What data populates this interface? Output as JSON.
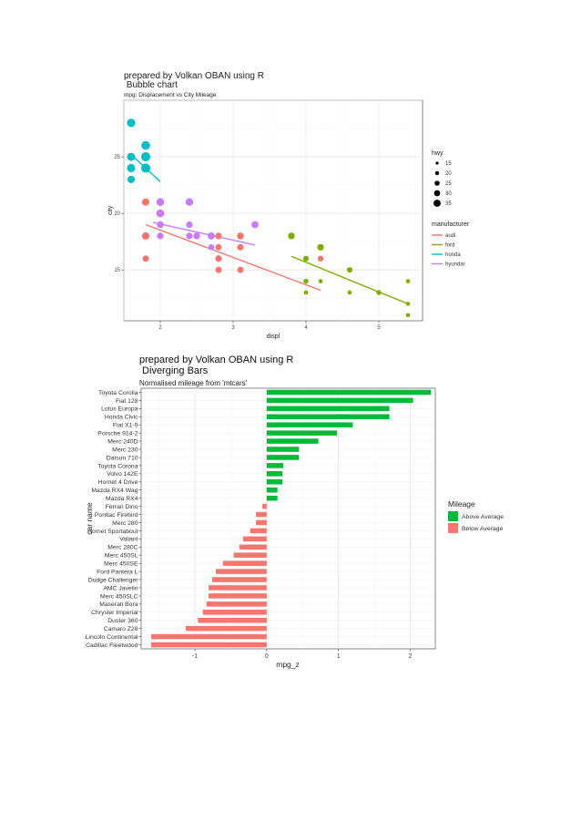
{
  "chart_data": [
    {
      "type": "scatter",
      "title": "prepared by Volkan OBAN using R\n Bubble chart",
      "subtitle": "mpg: Displacement vs City Mileage",
      "xlabel": "displ",
      "ylabel": "city",
      "xlim": [
        1.5,
        5.6
      ],
      "ylim": [
        10.5,
        30
      ],
      "x_ticks": [
        2,
        3,
        4,
        5
      ],
      "y_ticks": [
        15,
        20,
        25
      ],
      "grid": true,
      "size_legend": {
        "title": "hwy",
        "values": [
          15,
          20,
          25,
          30,
          35
        ]
      },
      "color_legend": {
        "title": "manufacturer",
        "entries": [
          {
            "name": "audi",
            "color": "#F8766D"
          },
          {
            "name": "ford",
            "color": "#7CAE00"
          },
          {
            "name": "honda",
            "color": "#00BFC4"
          },
          {
            "name": "hyundai",
            "color": "#C77CFF"
          }
        ]
      },
      "series": [
        {
          "name": "audi",
          "color": "#F8766D",
          "points": [
            [
              1.8,
              18,
              29
            ],
            [
              1.8,
              21,
              29
            ],
            [
              2.0,
              20,
              31
            ],
            [
              2.0,
              21,
              30
            ],
            [
              2.8,
              16,
              26
            ],
            [
              2.8,
              18,
              26
            ],
            [
              3.1,
              18,
              27
            ],
            [
              1.8,
              18,
              26
            ],
            [
              1.8,
              16,
              25
            ],
            [
              2.0,
              20,
              28
            ],
            [
              2.0,
              19,
              27
            ],
            [
              2.8,
              15,
              25
            ],
            [
              2.8,
              17,
              25
            ],
            [
              3.1,
              17,
              25
            ],
            [
              3.1,
              15,
              25
            ],
            [
              2.8,
              15,
              24
            ],
            [
              3.1,
              17,
              25
            ],
            [
              4.2,
              16,
              23
            ]
          ],
          "trend": [
            [
              1.8,
              19.0
            ],
            [
              4.2,
              13.2
            ]
          ]
        },
        {
          "name": "ford",
          "color": "#7CAE00",
          "points": [
            [
              3.8,
              18,
              26
            ],
            [
              3.8,
              18,
              25
            ],
            [
              4.0,
              16,
              22
            ],
            [
              4.0,
              14,
              20
            ],
            [
              4.6,
              15,
              22
            ],
            [
              5.4,
              12,
              17
            ],
            [
              5.4,
              11,
              15
            ],
            [
              4.0,
              14,
              17
            ],
            [
              4.0,
              13,
              17
            ],
            [
              4.0,
              14,
              18
            ],
            [
              4.2,
              14,
              17
            ],
            [
              4.6,
              13,
              16
            ],
            [
              4.6,
              13,
              16
            ],
            [
              4.6,
              13,
              17
            ],
            [
              5.4,
              11,
              17
            ],
            [
              3.8,
              18,
              26
            ],
            [
              4.2,
              17,
              26
            ],
            [
              4.6,
              15,
              21
            ],
            [
              4.6,
              15,
              21
            ],
            [
              5.0,
              13,
              20
            ],
            [
              5.4,
              14,
              17
            ]
          ],
          "trend": [
            [
              3.8,
              16.2
            ],
            [
              5.4,
              12.0
            ]
          ]
        },
        {
          "name": "honda",
          "color": "#00BFC4",
          "points": [
            [
              1.6,
              28,
              33
            ],
            [
              1.6,
              24,
              32
            ],
            [
              1.6,
              25,
              32
            ],
            [
              1.6,
              23,
              29
            ],
            [
              1.6,
              24,
              32
            ],
            [
              1.8,
              26,
              34
            ],
            [
              1.8,
              25,
              36
            ],
            [
              1.8,
              24,
              36
            ],
            [
              2.0,
              21,
              29
            ]
          ],
          "trend": [
            [
              1.6,
              25.2
            ],
            [
              2.0,
              22.8
            ]
          ]
        },
        {
          "name": "hyundai",
          "color": "#C77CFF",
          "points": [
            [
              2.0,
              18,
              26
            ],
            [
              2.0,
              19,
              26
            ],
            [
              2.0,
              20,
              29
            ],
            [
              2.0,
              21,
              28
            ],
            [
              2.4,
              19,
              26
            ],
            [
              2.4,
              18,
              26
            ],
            [
              2.5,
              18,
              26
            ],
            [
              2.5,
              18,
              26
            ],
            [
              2.7,
              17,
              24
            ],
            [
              2.4,
              21,
              28
            ],
            [
              2.4,
              21,
              30
            ],
            [
              2.5,
              18,
              26
            ],
            [
              2.7,
              18,
              28
            ],
            [
              3.3,
              19,
              28
            ]
          ],
          "trend": [
            [
              1.9,
              19.2
            ],
            [
              3.3,
              17.2
            ]
          ]
        }
      ]
    },
    {
      "type": "bar",
      "orientation": "horizontal",
      "title": "prepared by Volkan OBAN using R\n Diverging Bars",
      "subtitle": "Normalised mileage from 'mtcars'",
      "xlabel": "mpg_z",
      "ylabel": "car name",
      "xlim": [
        -1.75,
        2.35
      ],
      "x_ticks": [
        -1,
        0,
        1,
        2
      ],
      "grid": true,
      "legend": {
        "title": "Mileage",
        "entries": [
          {
            "name": "Above Average",
            "color": "#00BA38"
          },
          {
            "name": "Below Average",
            "color": "#F8766D"
          }
        ]
      },
      "categories": [
        "Toyota Corolla",
        "Fiat 128",
        "Lotus Europa",
        "Honda Civic",
        "Fiat X1-9",
        "Porsche 914-2",
        "Merc 240D",
        "Merc 230",
        "Datsun 710",
        "Toyota Corona",
        "Volvo 142E",
        "Hornet 4 Drive",
        "Mazda RX4 Wag",
        "Mazda RX4",
        "Ferrari Dino",
        "Pontiac Firebird",
        "Merc 280",
        "Hornet Sportabout",
        "Valiant",
        "Merc 280C",
        "Merc 450SL",
        "Merc 450SE",
        "Ford Pantera L",
        "Dodge Challenger",
        "AMC Javelin",
        "Merc 450SLC",
        "Maserati Bora",
        "Chrysler Imperial",
        "Duster 360",
        "Camaro Z28",
        "Lincoln Continental",
        "Cadillac Fleetwood"
      ],
      "values": [
        2.29,
        2.04,
        1.71,
        1.71,
        1.2,
        0.98,
        0.72,
        0.45,
        0.45,
        0.23,
        0.22,
        0.22,
        0.15,
        0.15,
        -0.06,
        -0.15,
        -0.15,
        -0.23,
        -0.33,
        -0.38,
        -0.46,
        -0.61,
        -0.71,
        -0.76,
        -0.81,
        -0.81,
        -0.84,
        -0.89,
        -0.96,
        -1.13,
        -1.61,
        -1.61
      ]
    }
  ]
}
